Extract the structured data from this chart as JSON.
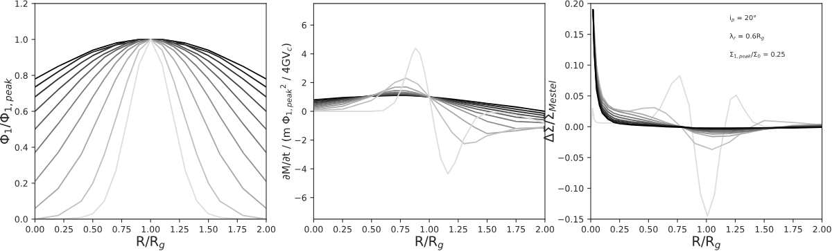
{
  "chart_data": [
    {
      "type": "line",
      "xlabel": "R/R$_{g}$",
      "ylabel": "Φ$_{1}$/Φ$_{1,peak}$",
      "xlim": [
        0,
        2
      ],
      "ylim": [
        0,
        1.2
      ],
      "xticks": [
        {
          "value": 0,
          "label": "0.00"
        },
        {
          "value": 0.25,
          "label": "0.25"
        },
        {
          "value": 0.5,
          "label": "0.50"
        },
        {
          "value": 0.75,
          "label": "0.75"
        },
        {
          "value": 1,
          "label": "1.00"
        },
        {
          "value": 1.25,
          "label": "1.25"
        },
        {
          "value": 1.5,
          "label": "1.50"
        },
        {
          "value": 1.75,
          "label": "1.75"
        },
        {
          "value": 2,
          "label": "2.00"
        }
      ],
      "yticks": [
        {
          "value": 0,
          "label": "0.0"
        },
        {
          "value": 0.2,
          "label": "0.2"
        },
        {
          "value": 0.4,
          "label": "0.4"
        },
        {
          "value": 0.6,
          "label": "0.6"
        },
        {
          "value": 0.8,
          "label": "0.8"
        },
        {
          "value": 1,
          "label": "1.0"
        },
        {
          "value": 1.2,
          "label": "1.2"
        }
      ],
      "x": [
        0,
        0.2,
        0.4,
        0.5,
        0.6,
        0.7,
        0.8,
        0.9,
        1.0,
        1.1,
        1.2,
        1.3,
        1.4,
        1.5,
        1.6,
        1.8,
        2.0
      ],
      "series": [
        {
          "color": "#000000",
          "values": [
            0.78,
            0.85,
            0.91,
            0.94,
            0.96,
            0.98,
            0.99,
            1.0,
            1.0,
            1.0,
            0.99,
            0.98,
            0.96,
            0.94,
            0.91,
            0.85,
            0.78
          ]
        },
        {
          "color": "#181818",
          "values": [
            0.735,
            0.82,
            0.9,
            0.93,
            0.95,
            0.97,
            0.99,
            1.0,
            1.0,
            1.0,
            0.99,
            0.97,
            0.95,
            0.93,
            0.9,
            0.82,
            0.735
          ]
        },
        {
          "color": "#303030",
          "values": [
            0.68,
            0.78,
            0.87,
            0.91,
            0.94,
            0.97,
            0.98,
            1.0,
            1.0,
            1.0,
            0.98,
            0.97,
            0.94,
            0.91,
            0.87,
            0.78,
            0.68
          ]
        },
        {
          "color": "#484848",
          "values": [
            0.6,
            0.72,
            0.83,
            0.88,
            0.92,
            0.95,
            0.98,
            0.99,
            1.0,
            0.99,
            0.98,
            0.95,
            0.92,
            0.88,
            0.83,
            0.72,
            0.6
          ]
        },
        {
          "color": "#606060",
          "values": [
            0.5,
            0.64,
            0.78,
            0.84,
            0.9,
            0.94,
            0.97,
            0.99,
            1.0,
            0.99,
            0.97,
            0.94,
            0.9,
            0.84,
            0.78,
            0.64,
            0.5
          ]
        },
        {
          "color": "#787878",
          "values": [
            0.37,
            0.53,
            0.7,
            0.78,
            0.85,
            0.91,
            0.96,
            0.99,
            1.0,
            0.99,
            0.96,
            0.91,
            0.85,
            0.78,
            0.7,
            0.53,
            0.37
          ]
        },
        {
          "color": "#909090",
          "values": [
            0.21,
            0.37,
            0.57,
            0.68,
            0.78,
            0.87,
            0.94,
            0.98,
            1.0,
            0.98,
            0.94,
            0.87,
            0.78,
            0.68,
            0.57,
            0.37,
            0.21
          ]
        },
        {
          "color": "#a8a8a8",
          "values": [
            0.06,
            0.17,
            0.36,
            0.5,
            0.64,
            0.78,
            0.89,
            0.97,
            1.0,
            0.97,
            0.89,
            0.78,
            0.64,
            0.5,
            0.36,
            0.17,
            0.06
          ]
        },
        {
          "color": "#c0c0c0",
          "values": [
            0.0,
            0.02,
            0.1,
            0.2,
            0.36,
            0.56,
            0.77,
            0.94,
            1.0,
            0.94,
            0.77,
            0.56,
            0.36,
            0.2,
            0.1,
            0.02,
            0.0
          ]
        },
        {
          "color": "#dddddd",
          "values": [
            0.0,
            0.0,
            0.01,
            0.03,
            0.1,
            0.27,
            0.56,
            0.86,
            1.0,
            0.86,
            0.56,
            0.27,
            0.1,
            0.03,
            0.01,
            0.0,
            0.0
          ]
        }
      ]
    },
    {
      "type": "line",
      "xlabel": "R/R$_{g}$",
      "ylabel": "∂M/∂t / (m Φ$_{1,peak}$$^{2}$ / 4GV$_{c}$)",
      "xlim": [
        0,
        2
      ],
      "ylim": [
        -7.5,
        7.5
      ],
      "xticks": [
        {
          "value": 0,
          "label": "0.00"
        },
        {
          "value": 0.25,
          "label": "0.25"
        },
        {
          "value": 0.5,
          "label": "0.50"
        },
        {
          "value": 0.75,
          "label": "0.75"
        },
        {
          "value": 1,
          "label": "1.00"
        },
        {
          "value": 1.25,
          "label": "1.25"
        },
        {
          "value": 1.5,
          "label": "1.50"
        },
        {
          "value": 1.75,
          "label": "1.75"
        },
        {
          "value": 2,
          "label": "2.00"
        }
      ],
      "yticks": [
        {
          "value": -6,
          "label": "−6"
        },
        {
          "value": -4,
          "label": "−4"
        },
        {
          "value": -2,
          "label": "−2"
        },
        0,
        2,
        4,
        6
      ],
      "x": [
        0,
        0.25,
        0.5,
        0.6,
        0.7,
        0.8,
        0.9,
        1.0,
        1.1,
        1.2,
        1.3,
        1.4,
        1.5,
        1.75,
        2.0
      ],
      "series": [
        {
          "color": "#000000",
          "values": [
            0.8,
            0.95,
            1.05,
            1.08,
            1.1,
            1.1,
            1.07,
            1.0,
            0.93,
            0.85,
            0.75,
            0.65,
            0.55,
            0.3,
            0.0
          ]
        },
        {
          "color": "#181818",
          "values": [
            0.7,
            0.9,
            1.06,
            1.1,
            1.12,
            1.12,
            1.08,
            1.0,
            0.9,
            0.8,
            0.68,
            0.56,
            0.45,
            0.15,
            -0.15
          ]
        },
        {
          "color": "#303030",
          "values": [
            0.6,
            0.85,
            1.07,
            1.12,
            1.15,
            1.14,
            1.1,
            1.0,
            0.88,
            0.74,
            0.6,
            0.46,
            0.33,
            0.0,
            -0.3
          ]
        },
        {
          "color": "#484848",
          "values": [
            0.5,
            0.8,
            1.08,
            1.15,
            1.18,
            1.17,
            1.12,
            1.0,
            0.85,
            0.68,
            0.5,
            0.33,
            0.18,
            -0.18,
            -0.45
          ]
        },
        {
          "color": "#606060",
          "values": [
            0.4,
            0.72,
            1.1,
            1.2,
            1.25,
            1.22,
            1.14,
            1.0,
            0.82,
            0.6,
            0.38,
            0.17,
            0.0,
            -0.4,
            -0.6
          ]
        },
        {
          "color": "#787878",
          "values": [
            0.3,
            0.62,
            1.1,
            1.25,
            1.33,
            1.3,
            1.18,
            1.0,
            0.77,
            0.5,
            0.22,
            -0.05,
            -0.25,
            -0.7,
            -0.8
          ]
        },
        {
          "color": "#909090",
          "values": [
            0.2,
            0.5,
            1.1,
            1.32,
            1.45,
            1.42,
            1.25,
            1.0,
            0.7,
            0.35,
            0.0,
            -0.35,
            -0.7,
            -1.2,
            -1.15
          ]
        },
        {
          "color": "#a8a8a8",
          "values": [
            0.1,
            0.35,
            1.05,
            1.4,
            1.68,
            1.7,
            1.4,
            1.0,
            0.45,
            -0.1,
            -0.65,
            -1.15,
            -1.55,
            -1.35,
            -1.1
          ]
        },
        {
          "color": "#c0c0c0",
          "values": [
            0.05,
            0.15,
            0.75,
            1.35,
            2.0,
            2.3,
            1.9,
            1.0,
            -0.3,
            -1.5,
            -2.25,
            -2.15,
            -1.7,
            -1.2,
            -1.1
          ]
        },
        {
          "color": "#dddddd",
          "x": [
            0,
            0.5,
            0.6,
            0.7,
            0.75,
            0.8,
            0.85,
            0.88,
            0.92,
            0.96,
            1.0,
            1.05,
            1.1,
            1.16,
            1.22,
            1.3,
            1.4,
            1.5,
            1.6,
            1.75,
            2.0
          ],
          "values": [
            0,
            0,
            0.05,
            0.6,
            1.4,
            2.6,
            3.9,
            4.4,
            4.0,
            2.7,
            1.0,
            -1.3,
            -3.3,
            -4.35,
            -3.6,
            -1.9,
            -0.5,
            -0.1,
            -0.05,
            -0.25,
            -0.8
          ]
        }
      ]
    },
    {
      "type": "line",
      "xlabel": "R/R$_{g}$",
      "ylabel": "ΔΣ/Σ$_{Mestel}$",
      "xlim": [
        0,
        2
      ],
      "ylim": [
        -0.15,
        0.2
      ],
      "xticks": [
        {
          "value": 0,
          "label": "0.00"
        },
        {
          "value": 0.25,
          "label": "0.25"
        },
        {
          "value": 0.5,
          "label": "0.50"
        },
        {
          "value": 0.75,
          "label": "0.75"
        },
        {
          "value": 1,
          "label": "1.00"
        },
        {
          "value": 1.25,
          "label": "1.25"
        },
        {
          "value": 1.5,
          "label": "1.50"
        },
        {
          "value": 1.75,
          "label": "1.75"
        },
        {
          "value": 2,
          "label": "2.00"
        }
      ],
      "yticks": [
        {
          "value": -0.15,
          "label": "−0.15"
        },
        {
          "value": -0.1,
          "label": "−0.10"
        },
        {
          "value": -0.05,
          "label": "−0.05"
        },
        {
          "value": 0,
          "label": "0.00"
        },
        {
          "value": 0.05,
          "label": "0.05"
        },
        {
          "value": 0.1,
          "label": "0.10"
        },
        {
          "value": 0.15,
          "label": "0.15"
        },
        {
          "value": 0.2,
          "label": "0.20"
        }
      ],
      "annotations": [
        "i$_{p}$ = 20°",
        "λ$_{r}$ = 0.6R$_{g}$",
        "Σ$_{1,peak}$/Σ$_{0}$ = 0.25"
      ],
      "x": [
        0.02,
        0.03,
        0.05,
        0.075,
        0.1,
        0.15,
        0.2,
        0.25,
        0.35,
        0.45,
        0.55,
        0.65,
        0.78,
        0.9,
        1.05,
        1.2,
        1.35,
        1.5,
        1.75,
        2.0
      ],
      "series": [
        {
          "color": "#dddddd",
          "x": [
            0.005,
            0.015,
            0.03,
            0.05,
            0.1,
            0.3,
            0.5,
            0.6,
            0.7,
            0.77,
            0.85,
            0.9,
            0.95,
            1.01,
            1.07,
            1.12,
            1.17,
            1.21,
            1.26,
            1.32,
            1.4,
            1.5,
            1.75,
            2.0
          ],
          "values": [
            0.0,
            0.03,
            0.012,
            0.007,
            0.006,
            0.006,
            0.008,
            0.03,
            0.07,
            0.083,
            0.035,
            -0.04,
            -0.11,
            -0.145,
            -0.11,
            -0.04,
            0.01,
            0.045,
            0.051,
            0.03,
            0.008,
            0.0,
            0.0,
            0.0
          ]
        },
        {
          "color": "#c0c0c0",
          "values": [
            0.19,
            0.16,
            0.1,
            0.07,
            0.05,
            0.035,
            0.028,
            0.025,
            0.026,
            0.03,
            0.031,
            0.022,
            0.0,
            -0.027,
            -0.037,
            -0.025,
            -0.004,
            0.01,
            0.007,
            0.003
          ]
        },
        {
          "color": "#a8a8a8",
          "values": [
            0.19,
            0.155,
            0.095,
            0.065,
            0.048,
            0.035,
            0.029,
            0.027,
            0.024,
            0.02,
            0.014,
            0.007,
            0.0,
            -0.01,
            -0.016,
            -0.015,
            -0.01,
            -0.004,
            0.002,
            0.004
          ]
        },
        {
          "color": "#909090",
          "values": [
            0.19,
            0.15,
            0.09,
            0.06,
            0.045,
            0.032,
            0.027,
            0.024,
            0.02,
            0.015,
            0.01,
            0.005,
            0.0,
            -0.008,
            -0.012,
            -0.011,
            -0.008,
            -0.004,
            0.001,
            0.003
          ]
        },
        {
          "color": "#787878",
          "values": [
            0.19,
            0.145,
            0.085,
            0.055,
            0.04,
            0.028,
            0.022,
            0.019,
            0.015,
            0.011,
            0.007,
            0.003,
            0.0,
            -0.006,
            -0.009,
            -0.009,
            -0.007,
            -0.004,
            0.0,
            0.002
          ]
        },
        {
          "color": "#606060",
          "values": [
            0.19,
            0.14,
            0.08,
            0.05,
            0.035,
            0.024,
            0.018,
            0.015,
            0.011,
            0.008,
            0.005,
            0.003,
            0.0,
            -0.005,
            -0.007,
            -0.007,
            -0.005,
            -0.003,
            0.0,
            0.001
          ]
        },
        {
          "color": "#484848",
          "values": [
            0.19,
            0.135,
            0.075,
            0.046,
            0.031,
            0.02,
            0.014,
            0.011,
            0.008,
            0.006,
            0.004,
            0.002,
            0.0,
            -0.004,
            -0.005,
            -0.005,
            -0.004,
            -0.002,
            0.0,
            0.001
          ]
        },
        {
          "color": "#303030",
          "values": [
            0.19,
            0.13,
            0.07,
            0.042,
            0.028,
            0.017,
            0.011,
            0.009,
            0.006,
            0.004,
            0.003,
            0.001,
            0.0,
            -0.003,
            -0.004,
            -0.004,
            -0.003,
            -0.002,
            -0.001,
            0.0
          ]
        },
        {
          "color": "#181818",
          "values": [
            0.19,
            0.125,
            0.065,
            0.038,
            0.025,
            0.014,
            0.009,
            0.007,
            0.004,
            0.003,
            0.002,
            0.001,
            0.0,
            -0.002,
            -0.003,
            -0.003,
            -0.002,
            -0.002,
            -0.001,
            -0.001
          ]
        },
        {
          "color": "#000000",
          "values": [
            0.19,
            0.12,
            0.06,
            0.035,
            0.022,
            0.012,
            0.007,
            0.005,
            0.003,
            0.002,
            0.001,
            0.0,
            -0.001,
            -0.002,
            -0.002,
            -0.002,
            -0.002,
            -0.002,
            -0.002,
            -0.001
          ]
        }
      ]
    }
  ]
}
